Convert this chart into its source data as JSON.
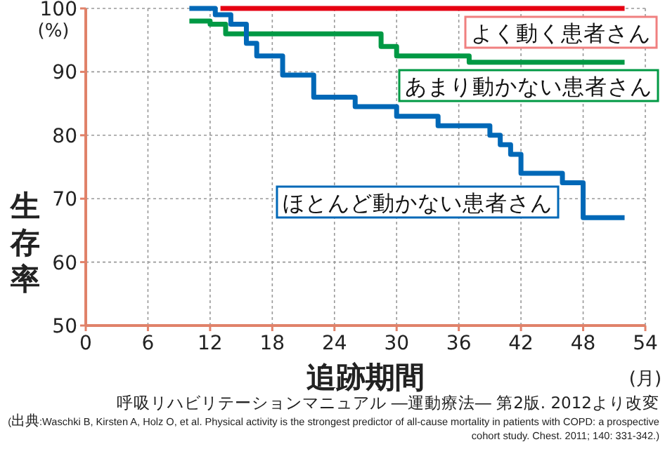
{
  "chart_data": {
    "type": "step",
    "xlabel": "追跡期間",
    "ylabel": "生存率",
    "xlim": [
      0,
      54
    ],
    "xticks": [
      0,
      6,
      12,
      18,
      24,
      30,
      36,
      42,
      48,
      54
    ],
    "ylim": [
      50,
      100
    ],
    "yticks": [
      50,
      60,
      70,
      80,
      90,
      100
    ],
    "grid": true,
    "series": [
      {
        "name": "よく動く患者さん",
        "color": "#e60012",
        "x": [
          13,
          52
        ],
        "values": [
          100,
          100
        ]
      },
      {
        "name": "あまり動かない患者さん",
        "color": "#009944",
        "x": [
          10,
          12,
          13.5,
          28.5,
          30,
          37,
          52
        ],
        "values": [
          98,
          97.5,
          96,
          94,
          92.5,
          91.5,
          91.5
        ]
      },
      {
        "name": "ほとんど動かない患者さん",
        "color": "#0068b7",
        "x": [
          10,
          12.5,
          14,
          15.5,
          16.5,
          19,
          22,
          26,
          30,
          34,
          39,
          40,
          41,
          42,
          46,
          48,
          52
        ],
        "values": [
          100,
          99,
          97.5,
          94.5,
          92.5,
          89.5,
          86,
          84.5,
          83,
          81.5,
          80,
          78.5,
          77,
          74,
          72.5,
          67,
          67
        ]
      }
    ],
    "annotations": [
      "(%)",
      "(月)",
      "呼吸リハビリテーションマニュアル ―運動療法― 第2版. 2012より改変",
      "(出典:Waschki B, Kirsten A, Holz O, et al.  Physical activity is the strongest predictor of all-cause mortality in patients with COPD: a prospective cohort study.  Chest. 2011; 140: 331-342.)"
    ]
  }
}
